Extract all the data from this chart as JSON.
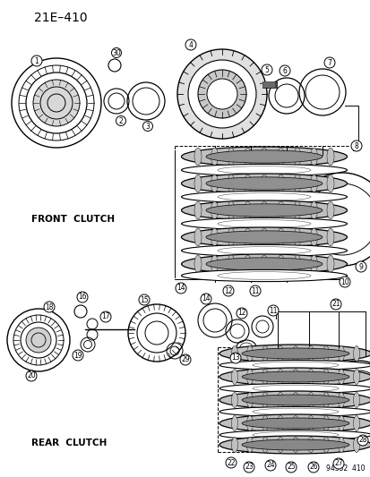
{
  "title": "21E–410",
  "background_color": "#ffffff",
  "line_color": "#000000",
  "label_front_clutch": "FRONT  CLUTCH",
  "label_rear_clutch": "REAR  CLUTCH",
  "watermark": "94352  410"
}
